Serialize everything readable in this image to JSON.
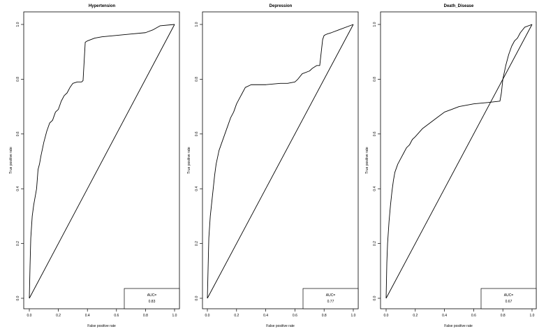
{
  "chart_data": [
    {
      "type": "line",
      "title": "Hypertension",
      "xlabel": "False positive rate",
      "ylabel": "True positive rate",
      "xlim": [
        0,
        1
      ],
      "ylim": [
        0,
        1
      ],
      "xticks": [
        "0.0",
        "0.2",
        "0.4",
        "0.6",
        "0.8",
        "1.0"
      ],
      "yticks": [
        "0.0",
        "0.2",
        "0.4",
        "0.6",
        "0.8",
        "1.0"
      ],
      "grid": false,
      "legend": {
        "placement": "bottom-right",
        "heading": "AUC=",
        "value": "0.83"
      },
      "series": [
        {
          "x": [
            0,
            0.005,
            0.01,
            0.015,
            0.02,
            0.03,
            0.04,
            0.05,
            0.06,
            0.07,
            0.08,
            0.1,
            0.12,
            0.14,
            0.16,
            0.18,
            0.2,
            0.22,
            0.24,
            0.26,
            0.28,
            0.3,
            0.33,
            0.36,
            0.37,
            0.385,
            0.4,
            0.45,
            0.5,
            0.6,
            0.7,
            0.8,
            0.85,
            0.9,
            1.0
          ],
          "y": [
            0,
            0.12,
            0.22,
            0.26,
            0.3,
            0.34,
            0.37,
            0.4,
            0.47,
            0.49,
            0.52,
            0.57,
            0.61,
            0.64,
            0.65,
            0.68,
            0.69,
            0.72,
            0.74,
            0.75,
            0.77,
            0.785,
            0.79,
            0.79,
            0.795,
            0.935,
            0.94,
            0.95,
            0.955,
            0.96,
            0.965,
            0.97,
            0.98,
            0.995,
            1.0
          ]
        },
        {
          "name": "",
          "x": [
            0,
            1
          ],
          "y": [
            0,
            1
          ]
        }
      ]
    },
    {
      "type": "line",
      "title": "Depression",
      "xlabel": "False positive rate",
      "ylabel": "True positive rate",
      "xlim": [
        0,
        1
      ],
      "ylim": [
        0,
        1
      ],
      "xticks": [
        "0.0",
        "0.2",
        "0.4",
        "0.6",
        "0.8",
        "1.0"
      ],
      "yticks": [
        "0.0",
        "0.2",
        "0.4",
        "0.6",
        "0.8",
        "1.0"
      ],
      "grid": false,
      "legend": {
        "placement": "bottom-right",
        "heading": "AUC=",
        "value": "0.77"
      },
      "series": [
        {
          "x": [
            0,
            0.01,
            0.02,
            0.03,
            0.04,
            0.05,
            0.06,
            0.08,
            0.1,
            0.12,
            0.14,
            0.16,
            0.18,
            0.2,
            0.22,
            0.24,
            0.26,
            0.3,
            0.4,
            0.5,
            0.55,
            0.6,
            0.62,
            0.65,
            0.7,
            0.72,
            0.75,
            0.77,
            0.79,
            0.8,
            0.82,
            0.85,
            0.9,
            1.0
          ],
          "y": [
            0,
            0.22,
            0.3,
            0.35,
            0.4,
            0.45,
            0.49,
            0.54,
            0.57,
            0.6,
            0.63,
            0.66,
            0.68,
            0.71,
            0.73,
            0.75,
            0.77,
            0.78,
            0.78,
            0.785,
            0.785,
            0.79,
            0.8,
            0.82,
            0.83,
            0.84,
            0.85,
            0.85,
            0.945,
            0.96,
            0.965,
            0.97,
            0.98,
            1.0
          ]
        },
        {
          "name": "",
          "x": [
            0,
            1
          ],
          "y": [
            0,
            1
          ]
        }
      ]
    },
    {
      "type": "line",
      "title": "Death_Disease",
      "xlabel": "False positive rate",
      "ylabel": "True positive rate",
      "xlim": [
        0,
        1
      ],
      "ylim": [
        0,
        1
      ],
      "xticks": [
        "0.0",
        "0.2",
        "0.4",
        "0.6",
        "0.8",
        "1.0"
      ],
      "yticks": [
        "0.0",
        "0.2",
        "0.4",
        "0.6",
        "0.8",
        "1.0"
      ],
      "grid": false,
      "legend": {
        "placement": "bottom-right",
        "heading": "AUC=",
        "value": "0.67"
      },
      "series": [
        {
          "x": [
            0,
            0.005,
            0.01,
            0.02,
            0.03,
            0.04,
            0.05,
            0.06,
            0.08,
            0.1,
            0.12,
            0.14,
            0.16,
            0.18,
            0.2,
            0.25,
            0.3,
            0.35,
            0.4,
            0.45,
            0.5,
            0.6,
            0.7,
            0.78,
            0.79,
            0.8,
            0.82,
            0.84,
            0.86,
            0.88,
            0.9,
            0.92,
            0.95,
            1.0
          ],
          "y": [
            0,
            0.13,
            0.2,
            0.28,
            0.34,
            0.39,
            0.43,
            0.46,
            0.49,
            0.51,
            0.53,
            0.55,
            0.56,
            0.58,
            0.59,
            0.62,
            0.64,
            0.66,
            0.68,
            0.69,
            0.7,
            0.71,
            0.715,
            0.72,
            0.75,
            0.8,
            0.85,
            0.89,
            0.92,
            0.94,
            0.95,
            0.97,
            0.99,
            1.0
          ]
        },
        {
          "name": "",
          "x": [
            0,
            1
          ],
          "y": [
            0,
            1
          ]
        }
      ]
    }
  ]
}
